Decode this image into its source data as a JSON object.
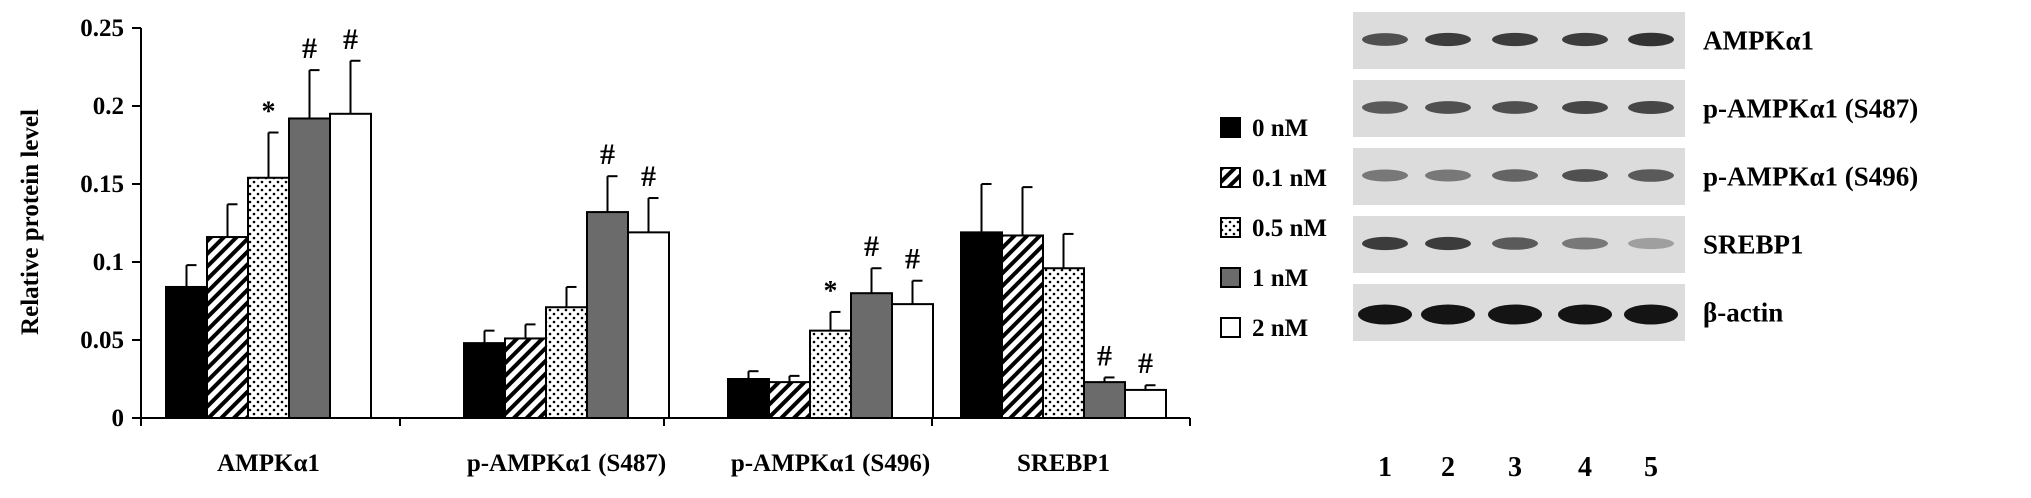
{
  "chart_data": {
    "type": "bar",
    "title": "",
    "ylabel": "Relative protein level",
    "xlabel": "",
    "ylim": [
      0,
      0.25
    ],
    "yticks": [
      "0",
      "0.05",
      "0.1",
      "0.15",
      "0.2",
      "0.25"
    ],
    "categories": [
      "AMPKα1",
      "p-AMPKα1 (S487)",
      "p-AMPKα1 (S496)",
      "SREBP1"
    ],
    "series": [
      {
        "name": "0 nM",
        "fill": "solid-black",
        "values": [
          0.084,
          0.048,
          0.025,
          0.119
        ],
        "errors": [
          0.014,
          0.008,
          0.005,
          0.031
        ],
        "marks": [
          "",
          "",
          "",
          ""
        ]
      },
      {
        "name": "0.1 nM",
        "fill": "diagonal-hatch",
        "values": [
          0.116,
          0.051,
          0.023,
          0.117
        ],
        "errors": [
          0.021,
          0.009,
          0.004,
          0.031
        ],
        "marks": [
          "",
          "",
          "",
          ""
        ]
      },
      {
        "name": "0.5 nM",
        "fill": "dotted",
        "values": [
          0.154,
          0.071,
          0.056,
          0.096
        ],
        "errors": [
          0.029,
          0.013,
          0.012,
          0.022
        ],
        "marks": [
          "*",
          "",
          "*",
          ""
        ]
      },
      {
        "name": "1 nM",
        "fill": "dark-gray",
        "values": [
          0.192,
          0.132,
          0.08,
          0.023
        ],
        "errors": [
          0.031,
          0.023,
          0.016,
          0.003
        ],
        "marks": [
          "#",
          "#",
          "#",
          "#"
        ]
      },
      {
        "name": "2 nM",
        "fill": "white",
        "values": [
          0.195,
          0.119,
          0.073,
          0.018
        ],
        "errors": [
          0.034,
          0.022,
          0.015,
          0.003
        ],
        "marks": [
          "#",
          "#",
          "#",
          "#"
        ]
      }
    ],
    "legend_position": "right"
  },
  "blot": {
    "rows": [
      "AMPKα1",
      "p-AMPKα1 (S487)",
      "p-AMPKα1 (S496)",
      "SREBP1",
      "β-actin"
    ],
    "band_intensity": [
      [
        0.7,
        0.8,
        0.8,
        0.8,
        0.85
      ],
      [
        0.65,
        0.7,
        0.7,
        0.75,
        0.75
      ],
      [
        0.5,
        0.5,
        0.6,
        0.7,
        0.65
      ],
      [
        0.8,
        0.8,
        0.65,
        0.5,
        0.3
      ],
      [
        1.0,
        1.0,
        1.0,
        1.0,
        1.0
      ]
    ],
    "lanes": [
      "1",
      "2",
      "3",
      "4",
      "5"
    ]
  },
  "colors": {
    "solid-black": "#000000",
    "dark-gray": "#6b6b6b",
    "white": "#ffffff",
    "blot-background": "#dcdcdc",
    "band": "#141414"
  }
}
